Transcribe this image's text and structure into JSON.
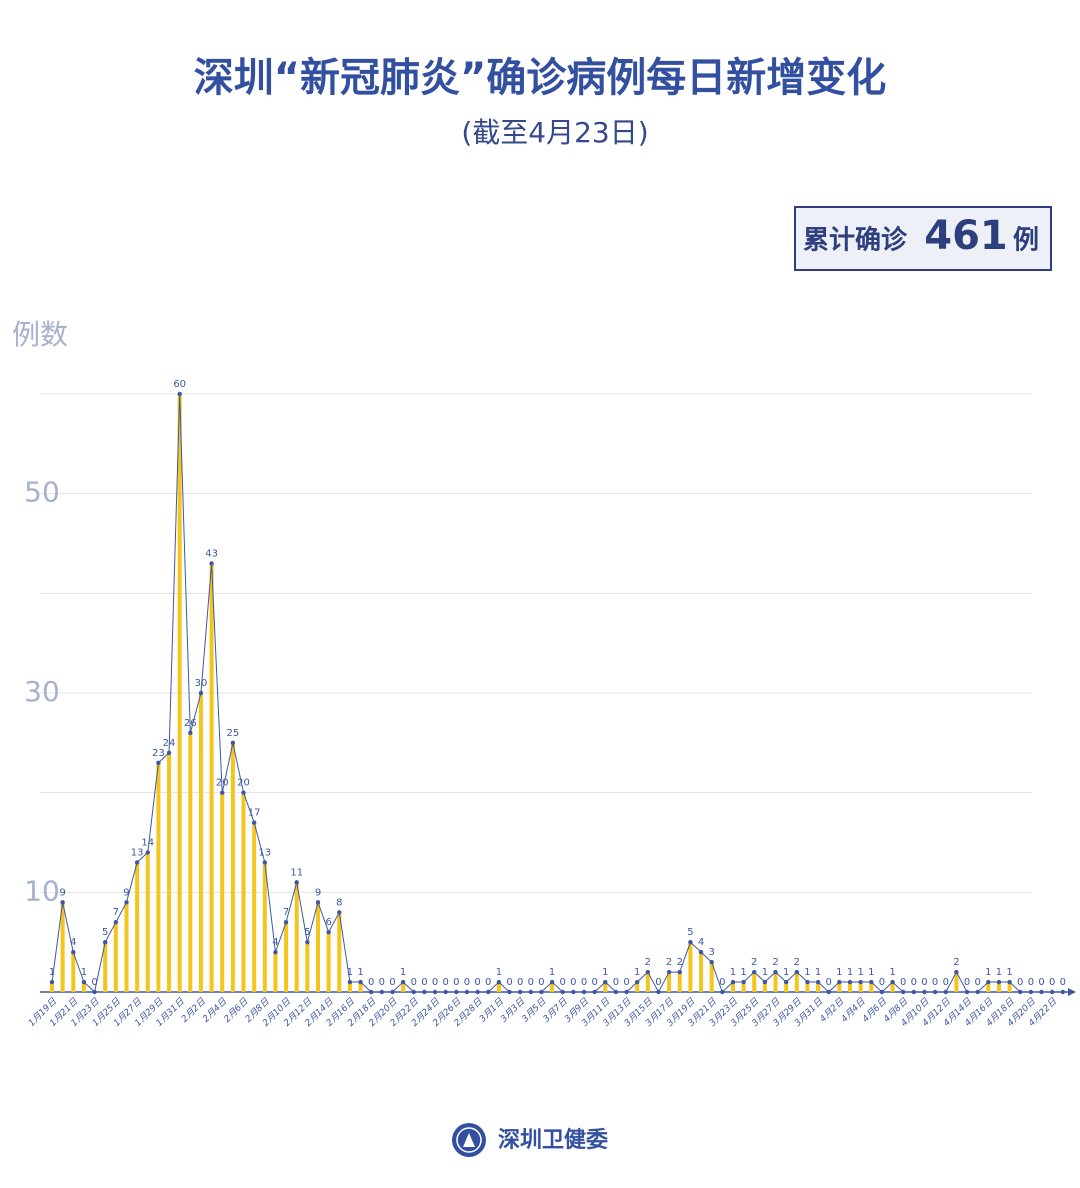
{
  "chart_data": {
    "type": "bar-line",
    "title": "深圳“新冠肺炎”确诊病例每日新增变化",
    "subtitle": "(截至4月23日)",
    "total_label": "累计确诊",
    "total": 461,
    "total_unit": "例",
    "y_label": "例数",
    "source": "深圳卫健委",
    "bar_color": "#f4c51c",
    "line_color": "#3d57a3",
    "ylim": [
      0,
      60
    ],
    "yticks": [
      10,
      30,
      50
    ],
    "minor_yticks": [
      20,
      40,
      60
    ],
    "grid": true,
    "categories": [
      "1月19日",
      null,
      "1月21日",
      null,
      "1月23日",
      null,
      "1月25日",
      null,
      "1月27日",
      null,
      "1月29日",
      null,
      "1月31日",
      null,
      "2月2日",
      null,
      "2月4日",
      null,
      "2月6日",
      null,
      "2月8日",
      null,
      "2月10日",
      null,
      "2月12日",
      null,
      "2月14日",
      null,
      "2月16日",
      null,
      "2月18日",
      null,
      "2月20日",
      null,
      "2月22日",
      null,
      "2月24日",
      null,
      "2月26日",
      null,
      "2月28日",
      null,
      "3月1日",
      null,
      "3月3日",
      null,
      "3月5日",
      null,
      "3月7日",
      null,
      "3月9日",
      null,
      "3月11日",
      null,
      "3月13日",
      null,
      "3月15日",
      null,
      "3月17日",
      null,
      "3月19日",
      null,
      "3月21日",
      null,
      "3月23日",
      null,
      "3月25日",
      null,
      "3月27日",
      null,
      "3月29日",
      null,
      "3月31日",
      null,
      "4月2日",
      null,
      "4月4日",
      null,
      "4月6日",
      null,
      "4月8日",
      null,
      "4月10日",
      null,
      "4月12日",
      null,
      "4月14日",
      null,
      "4月16日",
      null,
      "4月18日",
      null,
      "4月20日",
      null,
      "4月22日",
      null
    ],
    "values": [
      1,
      9,
      4,
      1,
      0,
      5,
      7,
      9,
      13,
      14,
      23,
      24,
      60,
      26,
      30,
      43,
      20,
      25,
      20,
      17,
      13,
      4,
      7,
      11,
      5,
      9,
      6,
      8,
      1,
      1,
      0,
      0,
      0,
      1,
      0,
      0,
      0,
      0,
      0,
      0,
      0,
      0,
      1,
      0,
      0,
      0,
      0,
      1,
      0,
      0,
      0,
      0,
      1,
      0,
      0,
      1,
      2,
      0,
      2,
      2,
      5,
      4,
      3,
      0,
      1,
      1,
      2,
      1,
      2,
      1,
      2,
      1,
      1,
      0,
      1,
      1,
      1,
      1,
      0,
      1,
      0,
      0,
      0,
      0,
      0,
      2,
      0,
      0,
      1,
      1,
      1,
      0,
      0,
      0,
      0,
      0
    ]
  }
}
